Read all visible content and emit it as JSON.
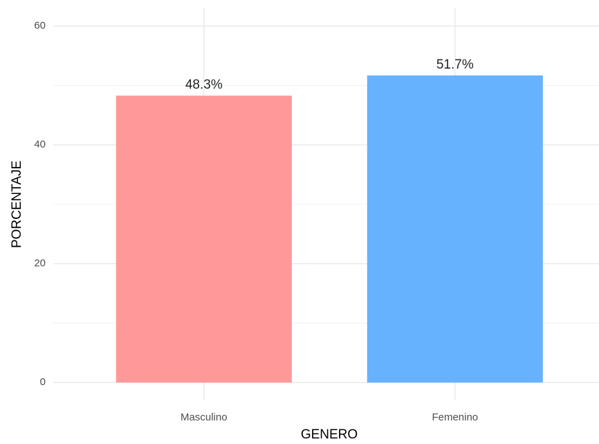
{
  "chart_data": {
    "type": "bar",
    "categories": [
      "Masculino",
      "Femenino"
    ],
    "values": [
      48.3,
      51.7
    ],
    "value_labels": [
      "48.3%",
      "51.7%"
    ],
    "colors": [
      "#ff9999",
      "#66b2ff"
    ],
    "x_label": "GENERO",
    "y_label": "PORCENTAJE",
    "ylim": [
      -3,
      63
    ],
    "yticks": [
      0,
      20,
      40,
      60
    ],
    "minor_yticks": [
      10,
      30,
      50
    ],
    "grid": true
  }
}
